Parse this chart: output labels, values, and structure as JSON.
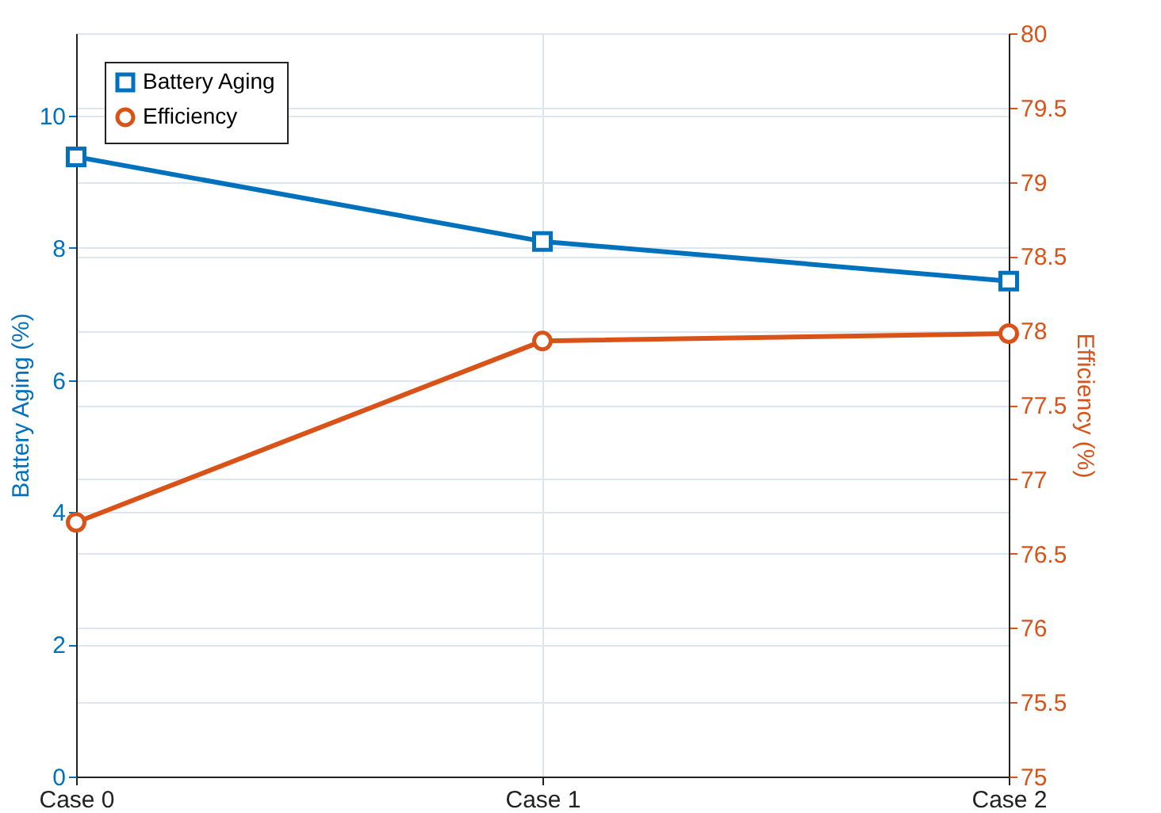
{
  "chart_data": {
    "type": "line",
    "categories": [
      "Case 0",
      "Case 1",
      "Case 2"
    ],
    "ylabel": "Battery Aging (%)",
    "y2label": "Efficiency (%)",
    "ylim": [
      0,
      11.25
    ],
    "yticks": [
      0,
      2,
      4,
      6,
      8,
      10
    ],
    "y2lim": [
      75,
      80
    ],
    "y2ticks": [
      75,
      75.5,
      76,
      76.5,
      77,
      77.5,
      78,
      78.5,
      79,
      79.5,
      80
    ],
    "series": [
      {
        "name": "Battery Aging",
        "color": "#0072bd",
        "values": [
          9.38,
          8.1,
          7.5
        ],
        "marker": "square"
      },
      {
        "name": "Efficiency",
        "color": "#d95319",
        "values": [
          76.71,
          77.93,
          77.98
        ],
        "axis": "y2",
        "marker": "circle"
      }
    ],
    "grid": true,
    "legend": "top left",
    "line_style": "solid"
  }
}
